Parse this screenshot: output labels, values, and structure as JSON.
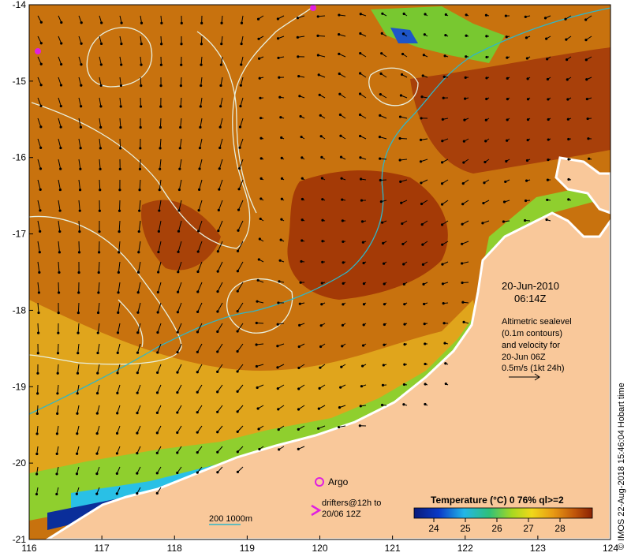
{
  "map": {
    "lon_ticks": [
      "116",
      "117",
      "118",
      "119",
      "120",
      "121",
      "122",
      "123",
      "124"
    ],
    "lat_ticks": [
      "-14",
      "-15",
      "-16",
      "-17",
      "-18",
      "-19",
      "-20",
      "-21"
    ],
    "date": "20-Jun-2010",
    "time": "06:14Z",
    "legend_lines": [
      "Altimetric sealevel",
      "(0.1m contours)",
      "and velocity for",
      "20-Jun 06Z",
      "0.5m/s (1kt 24h)"
    ],
    "argo_label": "Argo",
    "drifters_label_1": "drifters@12h to",
    "drifters_label_2": "20/06 12Z",
    "depth_label": "200  1000m",
    "colorbar_title": "Temperature (°C) 0 76% ql>=2",
    "colorbar_ticks": [
      "24",
      "25",
      "26",
      "27",
      "28"
    ],
    "credit": "© IMOS 22-Aug-2018 15:46:04 Hobart time",
    "colors": {
      "land": "#f9c89a",
      "warm_sea": "#c8720e",
      "hot_sea": "#a43a06",
      "cool_sea": "#e2b11c",
      "green_sea": "#8fcf2e",
      "cyan_sea": "#29c0e6",
      "blue_sea": "#0a2e9a",
      "contour": "#e8f0e0",
      "isobath": "#2fb6c8",
      "argo": "#e020e0"
    }
  }
}
